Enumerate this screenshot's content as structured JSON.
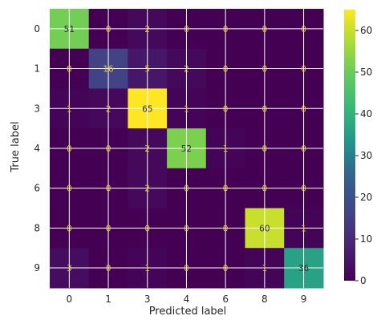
{
  "chart_data": {
    "type": "heatmap",
    "title": "",
    "xlabel": "Predicted label",
    "ylabel": "True label",
    "x_categories": [
      "0",
      "1",
      "3",
      "4",
      "6",
      "8",
      "9"
    ],
    "y_categories": [
      "0",
      "1",
      "3",
      "4",
      "6",
      "8",
      "9"
    ],
    "matrix": [
      [
        51,
        0,
        2,
        0,
        0,
        0,
        0
      ],
      [
        0,
        16,
        5,
        2,
        0,
        0,
        0
      ],
      [
        1,
        2,
        65,
        1,
        0,
        0,
        0
      ],
      [
        0,
        0,
        2,
        52,
        1,
        0,
        0
      ],
      [
        0,
        0,
        2,
        0,
        0,
        0,
        0
      ],
      [
        0,
        0,
        0,
        0,
        0,
        60,
        1
      ],
      [
        3,
        0,
        1,
        0,
        0,
        1,
        36
      ]
    ],
    "vmin": 0,
    "vmax": 65,
    "colormap": "viridis",
    "colorbar_ticks": [
      0,
      10,
      20,
      30,
      40,
      50,
      60
    ],
    "grid": true,
    "text_colors": {
      "dark": "#f2c32b",
      "light": "#2f2f2f"
    }
  }
}
